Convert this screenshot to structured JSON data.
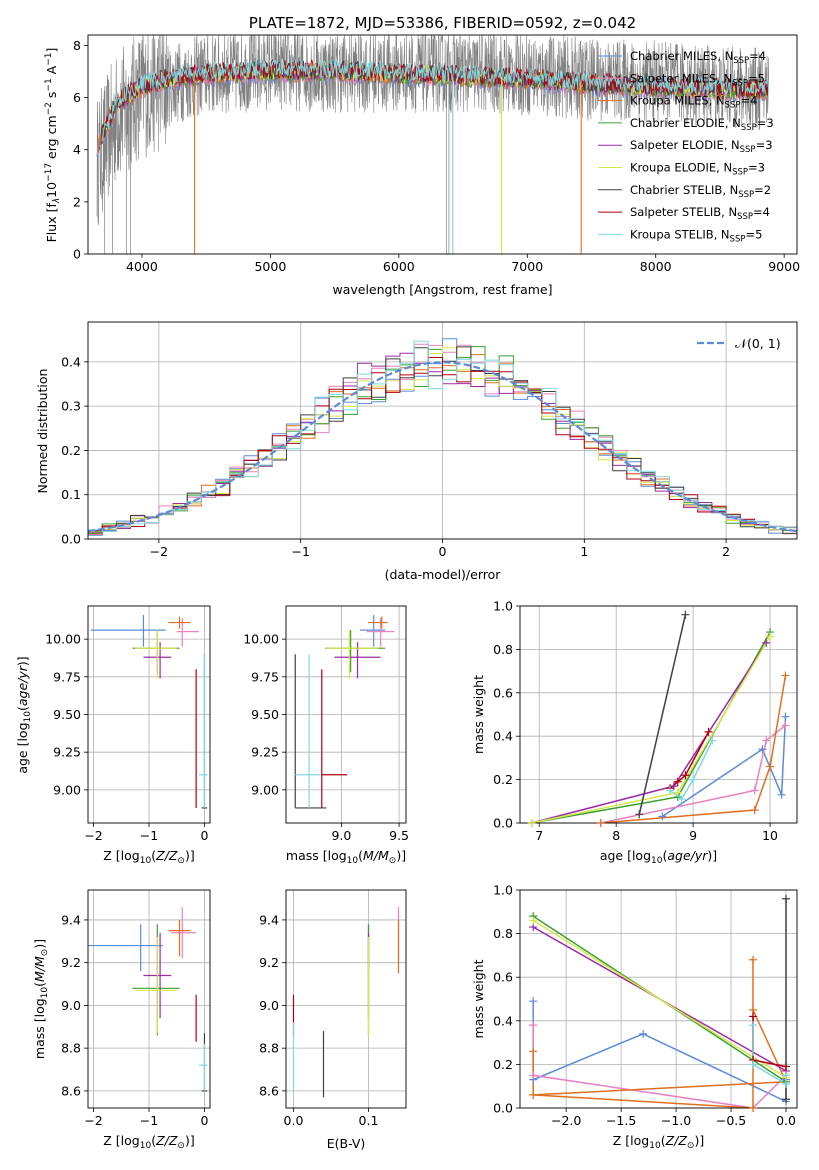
{
  "colors": {
    "chabrier_miles": "#5b8bd9",
    "salpeter_miles": "#e882c0",
    "kroupa_miles": "#e07020",
    "chabrier_elodie": "#3aa030",
    "salpeter_elodie": "#9a2aa8",
    "kroupa_elodie": "#d8e84a",
    "chabrier_stelib": "#404040",
    "salpeter_stelib": "#b00010",
    "kroupa_stelib": "#80d8e0",
    "data": "#808080",
    "grid": "#b0b0b0",
    "gauss": "#5b8bd9"
  },
  "chart_data": [
    {
      "id": "spectrum",
      "type": "line",
      "title": "PLATE=1872, MJD=53386, FIBERID=0592, z=0.042",
      "xlabel": "wavelength [Angstrom, rest frame]",
      "ylabel": "Flux [f",
      "xlim": [
        3580,
        9100
      ],
      "ylim": [
        0,
        8.4
      ],
      "xticks": [
        "4000",
        "5000",
        "6000",
        "7000",
        "8000",
        "9000"
      ],
      "yticks": [
        "0",
        "2",
        "4",
        "6",
        "8"
      ],
      "grid": false,
      "legend_position": "top-right",
      "legend": [
        {
          "name": "Chabrier MILES, N",
          "sub": "SSP",
          "tail": "=4"
        },
        {
          "name": "Salpeter MILES, N",
          "sub": "SSP",
          "tail": "=5"
        },
        {
          "name": "Kroupa MILES, N",
          "sub": "SSP",
          "tail": "=4"
        },
        {
          "name": "Chabrier ELODIE, N",
          "sub": "SSP",
          "tail": "=3"
        },
        {
          "name": "Salpeter ELODIE, N",
          "sub": "SSP",
          "tail": "=3"
        },
        {
          "name": "Kroupa ELODIE, N",
          "sub": "SSP",
          "tail": "=3"
        },
        {
          "name": "Chabrier STELIB, N",
          "sub": "SSP",
          "tail": "=2"
        },
        {
          "name": "Salpeter STELIB, N",
          "sub": "SSP",
          "tail": "=4"
        },
        {
          "name": "Kroupa STELIB, N",
          "sub": "SSP",
          "tail": "=5"
        }
      ],
      "data_envelope": {
        "x": [
          3650,
          3800,
          4000,
          4500,
          5000,
          5500,
          6000,
          6500,
          7000,
          7500,
          8000,
          8500,
          8880
        ],
        "y": [
          3.5,
          5.2,
          6.2,
          6.9,
          7.1,
          7.0,
          7.0,
          7.0,
          6.9,
          6.7,
          6.6,
          6.4,
          6.3
        ]
      },
      "dropouts_x": [
        3710,
        3770,
        3880,
        3910,
        4410,
        6370,
        6390,
        6420,
        6800,
        7420
      ],
      "model_envelope": {
        "x": [
          3650,
          3720,
          3800,
          4000,
          4200,
          4500,
          5000,
          5500,
          6000,
          6500,
          7000,
          7500,
          8000,
          8500,
          8880
        ],
        "y": [
          4.2,
          4.8,
          5.8,
          6.4,
          6.7,
          6.9,
          7.0,
          7.0,
          6.9,
          6.8,
          6.7,
          6.5,
          6.4,
          6.3,
          6.3
        ]
      }
    },
    {
      "id": "residuals",
      "type": "line",
      "xlabel": "(data-model)/error",
      "ylabel": "Normed distribution",
      "xlim": [
        -2.5,
        2.5
      ],
      "ylim": [
        0,
        0.49
      ],
      "xticks": [
        "−2",
        "−1",
        "0",
        "1",
        "2"
      ],
      "yticks": [
        "0.0",
        "0.1",
        "0.2",
        "0.3",
        "0.4"
      ],
      "grid": true,
      "legend_position": "top-right",
      "legend": [
        "𝒩(0, 1)"
      ],
      "series_count": 9,
      "bin_width": 0.1
    },
    {
      "id": "age_vs_Z",
      "type": "scatter",
      "xlabel": "Z [log",
      "ylabel": "age  [log",
      "xlim": [
        -2.1,
        0.1
      ],
      "ylim": [
        8.78,
        10.22
      ],
      "xticks": [
        "−2",
        "−1",
        "0"
      ],
      "yticks": [
        "9.00",
        "9.25",
        "9.50",
        "9.75",
        "10.00"
      ],
      "grid": true,
      "points": [
        {
          "s": "chabrier_miles",
          "x": -1.1,
          "xerr": [
            0.95,
            0.4
          ],
          "y": 10.06,
          "yerr": [
            0.11,
            0.1
          ]
        },
        {
          "s": "salpeter_miles",
          "x": -0.4,
          "xerr": [
            0.1,
            0.3
          ],
          "y": 10.05,
          "yerr": [
            0.1,
            0.09
          ]
        },
        {
          "s": "kroupa_miles",
          "x": -0.45,
          "xerr": [
            0.2,
            0.2
          ],
          "y": 10.11,
          "yerr": [
            0.04,
            0.04
          ]
        },
        {
          "s": "chabrier_elodie",
          "x": -0.85,
          "xerr": [
            0.45,
            0.4
          ],
          "y": 9.94,
          "yerr": [
            0.16,
            0.12
          ]
        },
        {
          "s": "salpeter_elodie",
          "x": -0.8,
          "xerr": [
            0.3,
            0.2
          ],
          "y": 9.88,
          "yerr": [
            0.14,
            0.1
          ]
        },
        {
          "s": "kroupa_elodie",
          "x": -0.85,
          "xerr": [
            0.4,
            0.35
          ],
          "y": 9.94,
          "yerr": [
            0.2,
            0.12
          ]
        },
        {
          "s": "chabrier_stelib",
          "x": 0.0,
          "xerr": [
            0.05,
            0.05
          ],
          "y": 8.88,
          "yerr": [
            0.0,
            1.02
          ]
        },
        {
          "s": "salpeter_stelib",
          "x": -0.15,
          "xerr": [
            0.0,
            0.0
          ],
          "y": 9.1,
          "yerr": [
            0.22,
            0.7
          ]
        },
        {
          "s": "kroupa_stelib",
          "x": 0.0,
          "xerr": [
            0.1,
            0.05
          ],
          "y": 9.1,
          "yerr": [
            0.22,
            0.8
          ]
        }
      ]
    },
    {
      "id": "age_vs_mass",
      "type": "scatter",
      "xlabel": "mass [log",
      "ylabel": "",
      "xlim": [
        8.52,
        9.56
      ],
      "ylim": [
        8.78,
        10.22
      ],
      "xticks": [
        "9.0",
        "9.5"
      ],
      "yticks": [
        "9.00",
        "9.25",
        "9.50",
        "9.75",
        "10.00"
      ],
      "grid": true,
      "points": [
        {
          "s": "chabrier_miles",
          "x": 9.28,
          "xerr": [
            0.12,
            0.1
          ],
          "y": 10.06,
          "yerr": [
            0.11,
            0.1
          ]
        },
        {
          "s": "salpeter_miles",
          "x": 9.34,
          "xerr": [
            0.12,
            0.12
          ],
          "y": 10.05,
          "yerr": [
            0.1,
            0.09
          ]
        },
        {
          "s": "kroupa_miles",
          "x": 9.35,
          "xerr": [
            0.12,
            0.05
          ],
          "y": 10.11,
          "yerr": [
            0.04,
            0.04
          ]
        },
        {
          "s": "chabrier_elodie",
          "x": 9.08,
          "xerr": [
            0.22,
            0.3
          ],
          "y": 9.94,
          "yerr": [
            0.16,
            0.12
          ]
        },
        {
          "s": "salpeter_elodie",
          "x": 9.14,
          "xerr": [
            0.2,
            0.2
          ],
          "y": 9.88,
          "yerr": [
            0.14,
            0.1
          ]
        },
        {
          "s": "kroupa_elodie",
          "x": 9.07,
          "xerr": [
            0.2,
            0.25
          ],
          "y": 9.94,
          "yerr": [
            0.2,
            0.12
          ]
        },
        {
          "s": "chabrier_stelib",
          "x": 8.6,
          "xerr": [
            0.0,
            0.27
          ],
          "y": 8.88,
          "yerr": [
            0.0,
            1.02
          ]
        },
        {
          "s": "salpeter_stelib",
          "x": 8.83,
          "xerr": [
            0.0,
            0.22
          ],
          "y": 9.1,
          "yerr": [
            0.22,
            0.7
          ]
        },
        {
          "s": "kroupa_stelib",
          "x": 8.72,
          "xerr": [
            0.12,
            0.1
          ],
          "y": 9.1,
          "yerr": [
            0.22,
            0.8
          ]
        }
      ]
    },
    {
      "id": "weight_vs_age",
      "type": "line",
      "xlabel": "age  [log",
      "ylabel": "mass weight",
      "xlim": [
        6.75,
        10.35
      ],
      "ylim": [
        0,
        1.0
      ],
      "xticks": [
        "7",
        "8",
        "9",
        "10"
      ],
      "yticks": [
        "0.0",
        "0.2",
        "0.4",
        "0.6",
        "0.8",
        "1.0"
      ],
      "grid": true,
      "series": [
        {
          "s": "chabrier_miles",
          "x": [
            8.6,
            9.9,
            10.15,
            10.2
          ],
          "y": [
            0.03,
            0.34,
            0.13,
            0.49
          ]
        },
        {
          "s": "salpeter_miles",
          "x": [
            7.8,
            9.8,
            9.95,
            10.2
          ],
          "y": [
            0.0,
            0.15,
            0.38,
            0.45
          ]
        },
        {
          "s": "kroupa_miles",
          "x": [
            7.8,
            9.8,
            10.0,
            10.2
          ],
          "y": [
            0.0,
            0.06,
            0.26,
            0.68
          ]
        },
        {
          "s": "chabrier_elodie",
          "x": [
            6.9,
            8.8,
            10.0
          ],
          "y": [
            0.0,
            0.12,
            0.88
          ]
        },
        {
          "s": "salpeter_elodie",
          "x": [
            6.9,
            8.75,
            9.95
          ],
          "y": [
            0.0,
            0.17,
            0.83
          ]
        },
        {
          "s": "kroupa_elodie",
          "x": [
            6.9,
            8.8,
            10.0
          ],
          "y": [
            0.0,
            0.14,
            0.86
          ]
        },
        {
          "s": "chabrier_stelib",
          "x": [
            8.3,
            8.9
          ],
          "y": [
            0.04,
            0.96
          ]
        },
        {
          "s": "salpeter_stelib",
          "x": [
            8.7,
            8.8,
            8.9,
            9.2
          ],
          "y": [
            0.16,
            0.19,
            0.22,
            0.42
          ]
        },
        {
          "s": "kroupa_stelib",
          "x": [
            8.7,
            8.85,
            9.0,
            9.25
          ],
          "y": [
            0.15,
            0.11,
            0.2,
            0.38
          ]
        }
      ]
    },
    {
      "id": "mass_vs_Z",
      "type": "scatter",
      "xlabel": "Z [log",
      "ylabel": "mass [log",
      "xlim": [
        -2.1,
        0.1
      ],
      "ylim": [
        8.52,
        9.54
      ],
      "xticks": [
        "−2",
        "−1",
        "0"
      ],
      "yticks": [
        "8.6",
        "8.8",
        "9.0",
        "9.2",
        "9.4"
      ],
      "grid": true,
      "points": [
        {
          "s": "chabrier_miles",
          "x": -1.15,
          "xerr": [
            0.95,
            0.4
          ],
          "y": 9.28,
          "yerr": [
            0.12,
            0.1
          ]
        },
        {
          "s": "salpeter_miles",
          "x": -0.4,
          "xerr": [
            0.2,
            0.25
          ],
          "y": 9.34,
          "yerr": [
            0.12,
            0.12
          ]
        },
        {
          "s": "kroupa_miles",
          "x": -0.45,
          "xerr": [
            0.2,
            0.2
          ],
          "y": 9.35,
          "yerr": [
            0.12,
            0.05
          ]
        },
        {
          "s": "chabrier_elodie",
          "x": -0.85,
          "xerr": [
            0.45,
            0.4
          ],
          "y": 9.08,
          "yerr": [
            0.22,
            0.3
          ]
        },
        {
          "s": "salpeter_elodie",
          "x": -0.8,
          "xerr": [
            0.3,
            0.2
          ],
          "y": 9.14,
          "yerr": [
            0.2,
            0.2
          ]
        },
        {
          "s": "kroupa_elodie",
          "x": -0.85,
          "xerr": [
            0.4,
            0.35
          ],
          "y": 9.07,
          "yerr": [
            0.2,
            0.25
          ]
        },
        {
          "s": "chabrier_stelib",
          "x": 0.0,
          "xerr": [
            0.05,
            0.05
          ],
          "y": 8.6,
          "yerr": [
            0.0,
            0.27
          ]
        },
        {
          "s": "salpeter_stelib",
          "x": -0.15,
          "xerr": [
            0.0,
            0.0
          ],
          "y": 8.83,
          "yerr": [
            0.0,
            0.22
          ]
        },
        {
          "s": "kroupa_stelib",
          "x": 0.0,
          "xerr": [
            0.1,
            0.05
          ],
          "y": 8.72,
          "yerr": [
            0.12,
            0.1
          ]
        }
      ]
    },
    {
      "id": "mass_vs_ebv",
      "type": "scatter",
      "xlabel": "E(B-V)",
      "ylabel": "",
      "xlim": [
        -0.01,
        0.15
      ],
      "ylim": [
        8.52,
        9.54
      ],
      "xticks": [
        "0.0",
        "0.1"
      ],
      "yticks": [
        "8.6",
        "8.8",
        "9.0",
        "9.2",
        "9.4"
      ],
      "grid": true,
      "points": [
        {
          "s": "chabrier_miles",
          "x": 0.1,
          "xerr": [
            0,
            0
          ],
          "y": 9.28,
          "yerr": [
            0.12,
            0.1
          ]
        },
        {
          "s": "salpeter_miles",
          "x": 0.14,
          "xerr": [
            0,
            0
          ],
          "y": 9.34,
          "yerr": [
            0.12,
            0.12
          ]
        },
        {
          "s": "kroupa_miles",
          "x": 0.14,
          "xerr": [
            0,
            0
          ],
          "y": 9.35,
          "yerr": [
            0.2,
            0.05
          ]
        },
        {
          "s": "chabrier_elodie",
          "x": 0.1,
          "xerr": [
            0,
            0
          ],
          "y": 9.08,
          "yerr": [
            0.22,
            0.3
          ]
        },
        {
          "s": "salpeter_elodie",
          "x": 0.1,
          "xerr": [
            0,
            0
          ],
          "y": 9.14,
          "yerr": [
            0.2,
            0.2
          ]
        },
        {
          "s": "kroupa_elodie",
          "x": 0.1,
          "xerr": [
            0,
            0
          ],
          "y": 9.07,
          "yerr": [
            0.22,
            0.25
          ]
        },
        {
          "s": "chabrier_stelib",
          "x": 0.04,
          "xerr": [
            0,
            0
          ],
          "y": 8.72,
          "yerr": [
            0.15,
            0.16
          ]
        },
        {
          "s": "salpeter_stelib",
          "x": 0.0,
          "xerr": [
            0,
            0
          ],
          "y": 8.95,
          "yerr": [
            0.1,
            0.1
          ]
        },
        {
          "s": "kroupa_stelib",
          "x": 0.0,
          "xerr": [
            0,
            0
          ],
          "y": 8.75,
          "yerr": [
            0.15,
            0.17
          ]
        }
      ]
    },
    {
      "id": "weight_vs_Z",
      "type": "line",
      "xlabel": "Z [log",
      "ylabel": "mass weight",
      "xlim": [
        -2.42,
        0.1
      ],
      "ylim": [
        0,
        1.0
      ],
      "xticks": [
        "−2.0",
        "−1.5",
        "−1.0",
        "−0.5",
        "0.0"
      ],
      "yticks": [
        "0.0",
        "0.2",
        "0.4",
        "0.6",
        "0.8",
        "1.0"
      ],
      "grid": true,
      "series": [
        {
          "s": "chabrier_miles",
          "x": [
            -2.3,
            -2.3,
            -1.3,
            0.0,
            0.0
          ],
          "y": [
            0.49,
            0.13,
            0.34,
            0.03,
            0.13
          ]
        },
        {
          "s": "salpeter_miles",
          "x": [
            -2.3,
            -2.3,
            -0.3,
            0.0
          ],
          "y": [
            0.38,
            0.15,
            0.0,
            0.15
          ]
        },
        {
          "s": "kroupa_miles",
          "x": [
            -2.3,
            -2.3,
            -0.3,
            -0.3,
            -0.3,
            0.0,
            -2.3
          ],
          "y": [
            0.26,
            0.06,
            0.0,
            0.68,
            0.45,
            0.12,
            0.06
          ]
        },
        {
          "s": "chabrier_elodie",
          "x": [
            -2.3,
            0.0
          ],
          "y": [
            0.88,
            0.12
          ]
        },
        {
          "s": "salpeter_elodie",
          "x": [
            -2.3,
            0.0
          ],
          "y": [
            0.83,
            0.17
          ]
        },
        {
          "s": "kroupa_elodie",
          "x": [
            -2.3,
            0.0
          ],
          "y": [
            0.86,
            0.14
          ]
        },
        {
          "s": "chabrier_stelib",
          "x": [
            0.0,
            0.0
          ],
          "y": [
            0.96,
            0.04
          ]
        },
        {
          "s": "salpeter_stelib",
          "x": [
            -0.3,
            -0.3,
            0.0
          ],
          "y": [
            0.42,
            0.22,
            0.19
          ]
        },
        {
          "s": "kroupa_stelib",
          "x": [
            -0.3,
            -0.3,
            0.0,
            0.0
          ],
          "y": [
            0.38,
            0.2,
            0.11,
            0.15
          ]
        }
      ]
    }
  ]
}
